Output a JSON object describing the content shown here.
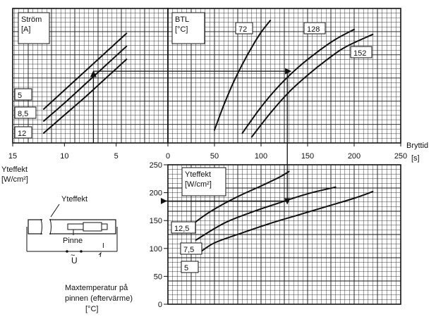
{
  "chart_data": [
    {
      "type": "line",
      "panel": "current",
      "label_lines": [
        "Ström",
        "[A]"
      ],
      "x_axis_ticks": [
        "15",
        "10",
        "5"
      ],
      "xlim": [
        15,
        0
      ],
      "series": [
        {
          "name": "5",
          "x": [
            12,
            10,
            8,
            6,
            4
          ],
          "y": [
            3.4,
            5.3,
            7.2,
            9.1,
            11.0
          ]
        },
        {
          "name": "8,5",
          "x": [
            12,
            10,
            8,
            6,
            4
          ],
          "y": [
            2.2,
            4.0,
            5.9,
            7.8,
            9.7
          ]
        },
        {
          "name": "12",
          "x": [
            12,
            10,
            8,
            6,
            4
          ],
          "y": [
            1.0,
            2.8,
            4.6,
            6.5,
            8.4
          ]
        }
      ]
    },
    {
      "type": "line",
      "panel": "BTL",
      "label_lines": [
        "BTL",
        "[°C]"
      ],
      "x_axis_ticks": [
        "0",
        "50",
        "100",
        "150",
        "200",
        "250"
      ],
      "xlim": [
        0,
        250
      ],
      "xlabel": "Bryttid",
      "xunit": "[s]",
      "series": [
        {
          "name": "72",
          "x": [
            50,
            60,
            70,
            80,
            90,
            100,
            110
          ],
          "y": [
            1.3,
            3.8,
            6.0,
            7.9,
            9.6,
            11.1,
            12.3
          ]
        },
        {
          "name": "128",
          "x": [
            80,
            100,
            120,
            140,
            160,
            180,
            200
          ],
          "y": [
            1.0,
            3.6,
            5.8,
            7.6,
            9.1,
            10.4,
            11.4
          ]
        },
        {
          "name": "152",
          "x": [
            90,
            110,
            130,
            150,
            170,
            190,
            220
          ],
          "y": [
            0.6,
            3.0,
            5.1,
            6.8,
            8.3,
            9.6,
            10.9
          ]
        }
      ]
    },
    {
      "type": "line",
      "panel": "yteffekt",
      "label_lines": [
        "Yteffekt",
        "[W/cm²]"
      ],
      "y_axis_ticks": [
        "0",
        "50",
        "100",
        "150",
        "200",
        "250"
      ],
      "ylim": [
        0,
        250
      ],
      "xlim": [
        0,
        250
      ],
      "series": [
        {
          "name": "12,5",
          "x": [
            20,
            40,
            60,
            80,
            100,
            120,
            130
          ],
          "y": [
            135,
            160,
            180,
            197,
            212,
            228,
            238
          ]
        },
        {
          "name": "7,5",
          "x": [
            30,
            60,
            90,
            120,
            150,
            180
          ],
          "y": [
            115,
            145,
            165,
            182,
            198,
            210
          ]
        },
        {
          "name": "5",
          "x": [
            32,
            50,
            80,
            110,
            140,
            170,
            200,
            220
          ],
          "y": [
            90,
            110,
            128,
            145,
            160,
            175,
            190,
            202
          ]
        }
      ]
    }
  ],
  "annotations": {
    "left_axis_title": [
      "Yteffekt",
      "[W/cm²]"
    ],
    "right_axis_title": [
      "Bryttid",
      "[s]"
    ],
    "diagram_label_top": "Yteffekt",
    "diagram_label_mid": "Pinne",
    "diagram_label_u": "U",
    "diagram_label_i": "I",
    "diagram_symbol_ac": "~",
    "diagram_caption_lines": [
      "Maxtemperatur på",
      "pinnen (eftervärme)",
      "[°C]"
    ]
  }
}
